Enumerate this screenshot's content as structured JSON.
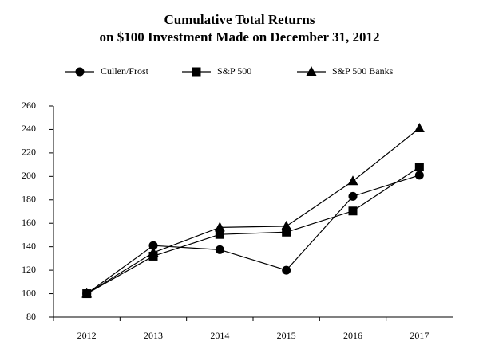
{
  "chart_data": {
    "type": "line",
    "title": "Cumulative Total Returns",
    "subtitle": "on $100 Investment Made on December 31, 2012",
    "categories": [
      "2012",
      "2013",
      "2014",
      "2015",
      "2016",
      "2017"
    ],
    "series": [
      {
        "name": "Cullen/Frost",
        "color": "#000000",
        "marker": "circle",
        "values": [
          100,
          141,
          137.5,
          120,
          183,
          201
        ]
      },
      {
        "name": "S&P 500",
        "color": "#000000",
        "marker": "square",
        "values": [
          100,
          132,
          150.5,
          152.5,
          170.5,
          208
        ]
      },
      {
        "name": "S&P 500 Banks",
        "color": "#000000",
        "marker": "triangle",
        "values": [
          100,
          135,
          156.5,
          157.5,
          196,
          241
        ]
      }
    ],
    "ylim": [
      80,
      260
    ],
    "yticks": [
      80,
      100,
      120,
      140,
      160,
      180,
      200,
      220,
      240,
      260
    ],
    "grid": false,
    "legend": "top"
  }
}
